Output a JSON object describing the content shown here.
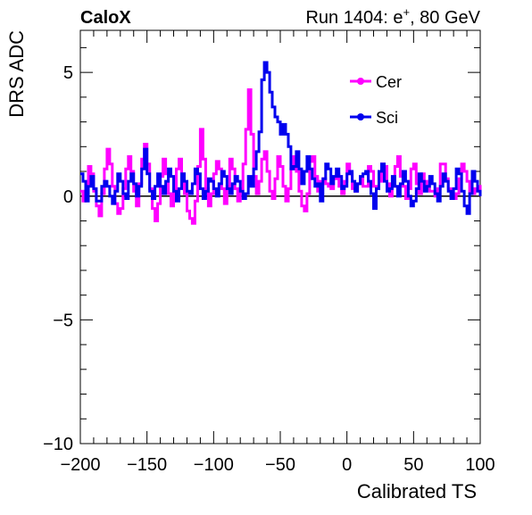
{
  "header": {
    "left": "CaloX",
    "right_prefix": "Run 1404: e",
    "right_sup": "+",
    "right_suffix": ", 80 GeV"
  },
  "chart_data": {
    "type": "line",
    "xlabel": "Calibrated TS",
    "ylabel": "DRS ADC",
    "xlim": [
      -200,
      100
    ],
    "ylim": [
      -10,
      6.7
    ],
    "xticks": [
      -200,
      -150,
      -100,
      -50,
      0,
      50,
      100
    ],
    "yticks": [
      -10,
      -5,
      0,
      5
    ],
    "xtick_labels": [
      "−200",
      "−150",
      "−100",
      "−50",
      "0",
      "50",
      "100"
    ],
    "ytick_labels": [
      "−10",
      "−5",
      "0",
      "5"
    ],
    "reference_line_y": 0,
    "grid": false,
    "legend": {
      "placement": "top-right"
    },
    "series": [
      {
        "name": "Cer",
        "color": "#ff00ff",
        "x": [
          -200,
          -198,
          -196,
          -194,
          -192,
          -190,
          -188,
          -186,
          -184,
          -182,
          -180,
          -178,
          -176,
          -174,
          -172,
          -170,
          -168,
          -166,
          -164,
          -162,
          -160,
          -158,
          -156,
          -154,
          -152,
          -150,
          -148,
          -146,
          -144,
          -142,
          -140,
          -138,
          -136,
          -134,
          -132,
          -130,
          -128,
          -126,
          -124,
          -122,
          -120,
          -118,
          -116,
          -114,
          -112,
          -110,
          -108,
          -106,
          -104,
          -102,
          -100,
          -98,
          -96,
          -94,
          -92,
          -90,
          -88,
          -86,
          -84,
          -82,
          -80,
          -78,
          -76,
          -74,
          -72,
          -70,
          -68,
          -66,
          -64,
          -62,
          -60,
          -58,
          -56,
          -54,
          -52,
          -50,
          -48,
          -46,
          -44,
          -42,
          -40,
          -38,
          -36,
          -34,
          -32,
          -30,
          -28,
          -26,
          -24,
          -22,
          -20,
          -18,
          -16,
          -14,
          -12,
          -10,
          -8,
          -6,
          -4,
          -2,
          0,
          2,
          4,
          6,
          8,
          10,
          12,
          14,
          16,
          18,
          20,
          22,
          24,
          26,
          28,
          30,
          32,
          34,
          36,
          38,
          40,
          42,
          44,
          46,
          48,
          50,
          52,
          54,
          56,
          58,
          60,
          62,
          64,
          66,
          68,
          70,
          72,
          74,
          76,
          78,
          80,
          82,
          84,
          86,
          88,
          90,
          92,
          94,
          96,
          98,
          100
        ],
        "values": [
          0.2,
          -0.2,
          0.5,
          1.2,
          0.9,
          0.2,
          -0.4,
          -0.8,
          0.1,
          1.1,
          1.9,
          1.3,
          0.4,
          -0.3,
          -0.7,
          -0.5,
          0.3,
          1.1,
          1.6,
          1.0,
          0.2,
          -0.4,
          0.5,
          1.5,
          2.1,
          1.3,
          0.3,
          -0.5,
          -1.0,
          -0.3,
          0.8,
          1.5,
          0.9,
          0.1,
          -0.4,
          0.2,
          1.1,
          1.5,
          0.9,
          0.1,
          -0.6,
          -0.9,
          -1.1,
          -0.2,
          1.2,
          2.7,
          1.5,
          0.3,
          -0.4,
          0.1,
          0.9,
          1.4,
          1.1,
          0.3,
          -0.3,
          0.4,
          1.5,
          1.1,
          0.3,
          -0.2,
          0.3,
          1.3,
          2.7,
          4.3,
          2.5,
          0.8,
          0.1,
          0.6,
          1.5,
          1.8,
          1.0,
          0.2,
          -0.1,
          0.7,
          1.6,
          1.2,
          0.4,
          -0.2,
          0.3,
          1.1,
          1.6,
          1.0,
          0.2,
          -0.4,
          -0.6,
          0.1,
          1.4,
          1.6,
          0.8,
          0.2,
          0.6,
          0.7,
          0.5,
          0.4,
          0.3,
          0.7,
          0.9,
          0.4,
          0.1,
          0.6,
          1.3,
          0.9,
          0.3,
          0.2,
          0.5,
          0.7,
          0.4,
          0.4,
          1.2,
          1.0,
          0.4,
          0.3,
          0.6,
          1.3,
          1.2,
          0.5,
          0.0,
          0.4,
          1.2,
          1.6,
          0.8,
          0.4,
          -0.1,
          0.3,
          1.1,
          1.3,
          0.5,
          0.1,
          0.9,
          0.6,
          0.3,
          0.2,
          0.2,
          0.0,
          0.3,
          1.3,
          1.3,
          0.7,
          0.3,
          0.0,
          -0.1,
          0.1,
          0.7,
          1.3,
          1.0,
          0.6,
          0.2,
          0.1,
          0.3,
          0.4,
          0.0
        ]
      },
      {
        "name": "Sci",
        "color": "#0000ee",
        "x": [
          -200,
          -198,
          -196,
          -194,
          -192,
          -190,
          -188,
          -186,
          -184,
          -182,
          -180,
          -178,
          -176,
          -174,
          -172,
          -170,
          -168,
          -166,
          -164,
          -162,
          -160,
          -158,
          -156,
          -154,
          -152,
          -150,
          -148,
          -146,
          -144,
          -142,
          -140,
          -138,
          -136,
          -134,
          -132,
          -130,
          -128,
          -126,
          -124,
          -122,
          -120,
          -118,
          -116,
          -114,
          -112,
          -110,
          -108,
          -106,
          -104,
          -102,
          -100,
          -98,
          -96,
          -94,
          -92,
          -90,
          -88,
          -86,
          -84,
          -82,
          -80,
          -78,
          -76,
          -74,
          -72,
          -70,
          -68,
          -66,
          -64,
          -62,
          -60,
          -58,
          -56,
          -54,
          -52,
          -50,
          -48,
          -46,
          -44,
          -42,
          -40,
          -38,
          -36,
          -34,
          -32,
          -30,
          -28,
          -26,
          -24,
          -22,
          -20,
          -18,
          -16,
          -14,
          -12,
          -10,
          -8,
          -6,
          -4,
          -2,
          0,
          2,
          4,
          6,
          8,
          10,
          12,
          14,
          16,
          18,
          20,
          22,
          24,
          26,
          28,
          30,
          32,
          34,
          36,
          38,
          40,
          42,
          44,
          46,
          48,
          50,
          52,
          54,
          56,
          58,
          60,
          62,
          64,
          66,
          68,
          70,
          72,
          74,
          76,
          78,
          80,
          82,
          84,
          86,
          88,
          90,
          92,
          94,
          96,
          98,
          100
        ],
        "values": [
          0.9,
          0.6,
          -0.2,
          0.4,
          0.8,
          0.3,
          -0.2,
          -0.2,
          0.4,
          0.6,
          0.4,
          0.0,
          -0.3,
          0.2,
          0.9,
          0.6,
          0.1,
          -0.1,
          0.6,
          0.9,
          0.5,
          0.0,
          0.4,
          1.1,
          1.9,
          0.9,
          0.2,
          -0.1,
          0.4,
          0.9,
          0.4,
          0.1,
          0.6,
          1.1,
          0.8,
          0.2,
          -0.2,
          0.3,
          0.9,
          0.6,
          0.2,
          0.1,
          0.5,
          1.1,
          0.9,
          0.3,
          -0.1,
          0.2,
          0.7,
          0.6,
          0.3,
          0.0,
          0.5,
          1.0,
          0.8,
          0.3,
          0.1,
          0.5,
          0.8,
          0.6,
          0.2,
          -0.1,
          0.1,
          0.8,
          0.4,
          1.1,
          1.8,
          2.6,
          4.7,
          5.4,
          5.0,
          4.2,
          3.6,
          3.2,
          3.0,
          2.5,
          2.9,
          2.5,
          2.0,
          1.1,
          1.2,
          1.8,
          1.1,
          0.5,
          1.0,
          1.6,
          1.1,
          0.7,
          0.4,
          0.5,
          -0.2,
          0.7,
          1.3,
          1.1,
          0.5,
          0.8,
          1.1,
          0.8,
          0.3,
          0.4,
          0.9,
          1.0,
          0.6,
          0.2,
          0.5,
          0.8,
          0.9,
          1.0,
          0.6,
          0.1,
          -0.5,
          0.3,
          1.0,
          1.3,
          0.6,
          0.2,
          0.3,
          0.8,
          0.4,
          0.0,
          0.5,
          1.0,
          0.6,
          0.0,
          -0.4,
          -0.2,
          0.3,
          0.9,
          0.6,
          0.2,
          0.4,
          0.8,
          0.5,
          0.1,
          -0.2,
          0.4,
          0.9,
          0.6,
          0.2,
          -0.1,
          0.3,
          1.1,
          0.9,
          0.2,
          -0.4,
          -0.7,
          0.1,
          1.0,
          0.6,
          0.2,
          0.0
        ]
      }
    ]
  }
}
